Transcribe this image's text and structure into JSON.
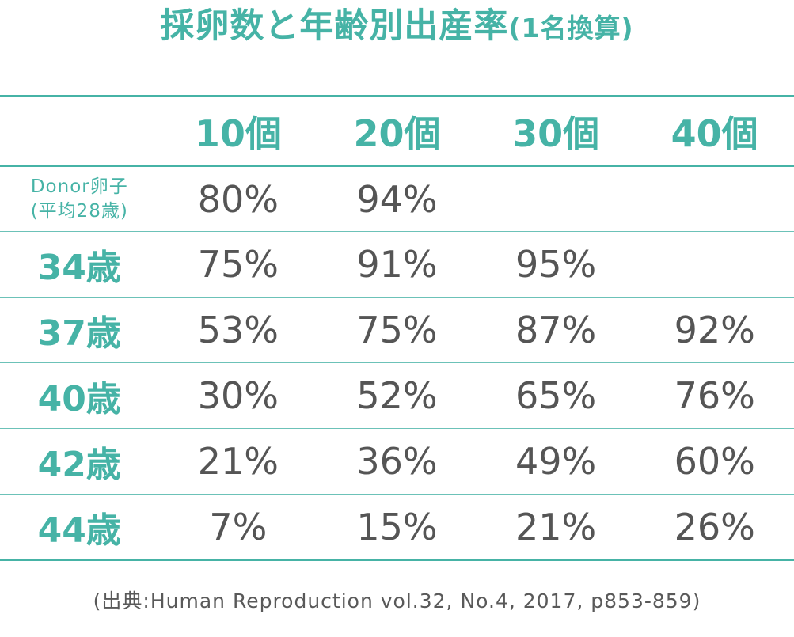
{
  "page": {
    "title_main": "採卵数と年齢別出産率",
    "title_paren": "(1名換算)",
    "source": "(出典:Human Reproduction vol.32, No.4, 2017, p853-859)"
  },
  "colors": {
    "accent": "#46b3a6",
    "value_text": "#555555",
    "row_divider": "#6cc2b8"
  },
  "chart_data": {
    "type": "table",
    "title": "採卵数と年齢別出産率(1名換算)",
    "columns": [
      "10個",
      "20個",
      "30個",
      "40個"
    ],
    "rows": [
      {
        "label_line1": "Donor卵子",
        "label_line2": "(平均28歳)",
        "values": [
          "80%",
          "94%",
          "",
          ""
        ]
      },
      {
        "label": "34歳",
        "values": [
          "75%",
          "91%",
          "95%",
          ""
        ]
      },
      {
        "label": "37歳",
        "values": [
          "53%",
          "75%",
          "87%",
          "92%"
        ]
      },
      {
        "label": "40歳",
        "values": [
          "30%",
          "52%",
          "65%",
          "76%"
        ]
      },
      {
        "label": "42歳",
        "values": [
          "21%",
          "36%",
          "49%",
          "60%"
        ]
      },
      {
        "label": "44歳",
        "values": [
          "7%",
          "15%",
          "21%",
          "26%"
        ]
      }
    ],
    "source": "(出典:Human Reproduction vol.32, No.4, 2017, p853-859)"
  }
}
